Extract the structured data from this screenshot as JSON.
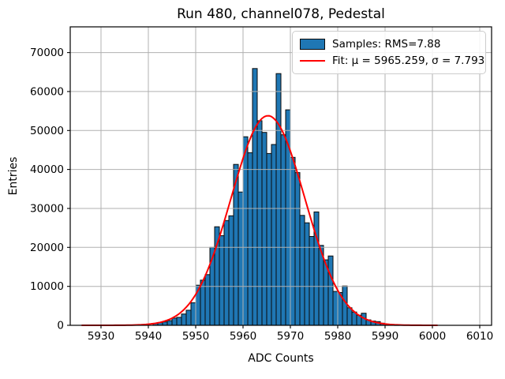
{
  "chart_data": {
    "type": "bar",
    "title": "Run 480, channel078, Pedestal",
    "xlabel": "ADC Counts",
    "ylabel": "Entries",
    "xlim": [
      5923.5,
      6012.5
    ],
    "ylim": [
      0,
      76600
    ],
    "x_ticks": [
      5930,
      5940,
      5950,
      5960,
      5970,
      5980,
      5990,
      6000,
      6010
    ],
    "y_ticks": [
      0,
      10000,
      20000,
      30000,
      40000,
      50000,
      60000,
      70000
    ],
    "grid": true,
    "legend_position": "upper right",
    "legend": {
      "entries": [
        {
          "label": "Samples: RMS=7.88",
          "type": "patch"
        },
        {
          "label": "Fit: μ = 5965.259, σ = 7.793",
          "type": "line"
        }
      ]
    },
    "histogram": {
      "bin_width": 1,
      "bin_start": 5941,
      "counts": [
        480,
        680,
        880,
        1200,
        1850,
        2050,
        2900,
        3870,
        5800,
        10300,
        11600,
        13000,
        20000,
        25300,
        23000,
        26900,
        28100,
        41300,
        34200,
        48400,
        44300,
        65900,
        52500,
        49500,
        44100,
        46400,
        64600,
        48900,
        55300,
        43100,
        39200,
        28200,
        26300,
        22800,
        29100,
        20500,
        16800,
        17800,
        8700,
        8400,
        10100,
        4500,
        3400,
        2600,
        3100,
        1400,
        1100,
        950,
        550,
        270,
        160,
        90
      ]
    },
    "fit": {
      "mu": 5965.259,
      "sigma": 7.793,
      "amplitude": 53800,
      "x_range": [
        5926,
        6001
      ]
    }
  },
  "colors": {
    "bar_fill": "#1f77b4",
    "bar_edge": "#0a0a0a",
    "fit_line": "#ff0000",
    "grid": "#b0b0b0",
    "frame": "#000000",
    "text": "#000000"
  }
}
